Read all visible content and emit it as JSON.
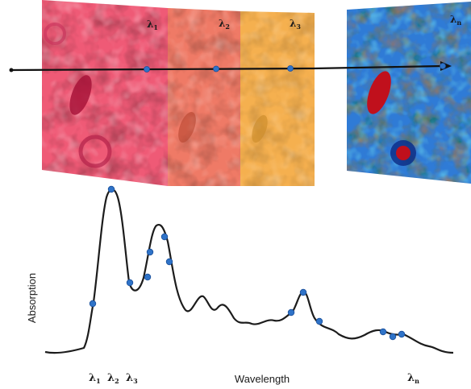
{
  "slices": [
    {
      "label_main": "λ",
      "label_sub": "1",
      "color": "#ef5a76"
    },
    {
      "label_main": "λ",
      "label_sub": "2",
      "color": "#ef7a66"
    },
    {
      "label_main": "λ",
      "label_sub": "3",
      "color": "#f5b04f"
    },
    {
      "label_main": "λ",
      "label_sub": "n",
      "color": "#2f7bd6"
    }
  ],
  "chart": {
    "ylabel": "Absorption",
    "xlabel": "Wavelength",
    "x_ticks": [
      {
        "main": "λ",
        "sub": "1"
      },
      {
        "main": "λ",
        "sub": "2"
      },
      {
        "main": "λ",
        "sub": "3"
      },
      {
        "main": "λ",
        "sub": "n"
      }
    ]
  },
  "colors": {
    "line": "#1c1c1c",
    "point": "#2f73c8",
    "arrow": "#111111"
  }
}
